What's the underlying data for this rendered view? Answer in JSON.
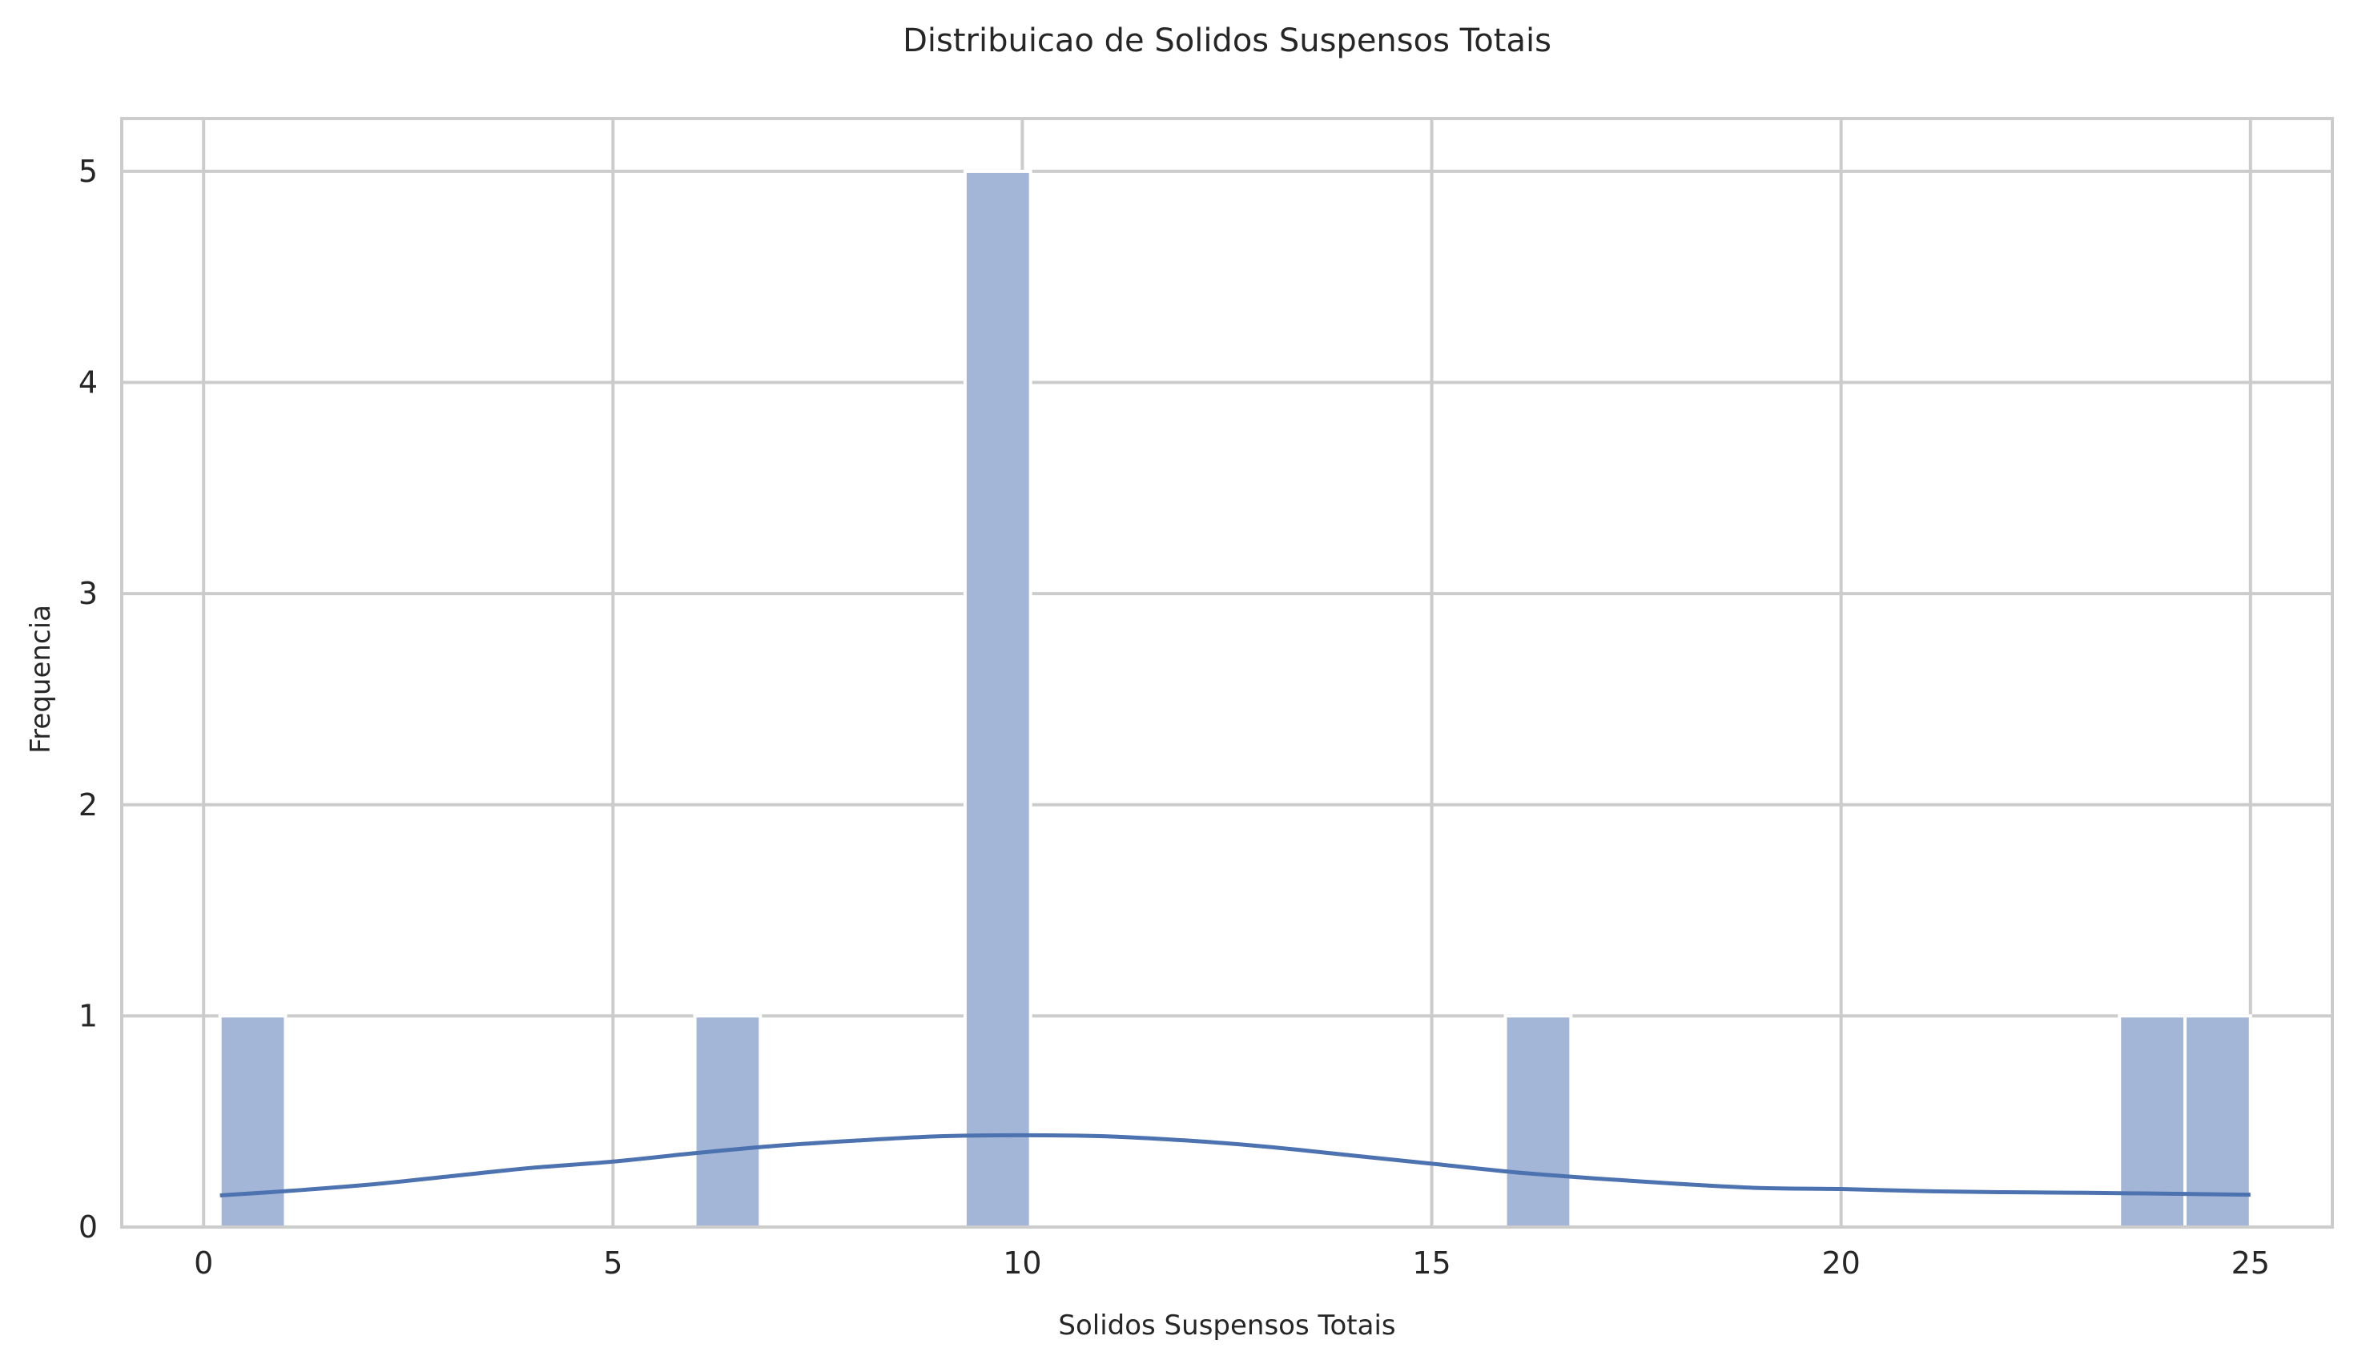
{
  "chart_data": {
    "type": "bar",
    "title": "Distribuicao de Solidos Suspensos Totais",
    "xlabel": "Solidos Suspensos Totais",
    "ylabel": "Frequencia",
    "xlim": [
      -1,
      26
    ],
    "ylim": [
      0,
      5.25
    ],
    "xticks": [
      0,
      5,
      10,
      15,
      20,
      25
    ],
    "yticks": [
      0,
      1,
      2,
      3,
      4,
      5
    ],
    "grid": true,
    "bins": [
      {
        "x0": 0.2,
        "x1": 1.0,
        "count": 1
      },
      {
        "x0": 6.0,
        "x1": 6.8,
        "count": 1
      },
      {
        "x0": 9.3,
        "x1": 10.1,
        "count": 5
      },
      {
        "x0": 15.9,
        "x1": 16.7,
        "count": 1
      },
      {
        "x0": 23.4,
        "x1": 24.2,
        "count": 1
      },
      {
        "x0": 24.2,
        "x1": 25.0,
        "count": 1
      }
    ],
    "kde": {
      "x": [
        0.2,
        1,
        2,
        3,
        4,
        5,
        6,
        7,
        8,
        9,
        10,
        11,
        12,
        13,
        14,
        15,
        16,
        17,
        18,
        19,
        20,
        21,
        22,
        23,
        24,
        25
      ],
      "y": [
        0.15,
        0.17,
        0.2,
        0.24,
        0.28,
        0.31,
        0.35,
        0.385,
        0.41,
        0.43,
        0.435,
        0.43,
        0.41,
        0.38,
        0.34,
        0.3,
        0.26,
        0.23,
        0.205,
        0.185,
        0.18,
        0.17,
        0.165,
        0.162,
        0.158,
        0.153
      ]
    },
    "colors": {
      "bar_fill": "#a3b6d8",
      "bar_edge": "#ffffff",
      "kde_line": "#4c72b0"
    }
  }
}
